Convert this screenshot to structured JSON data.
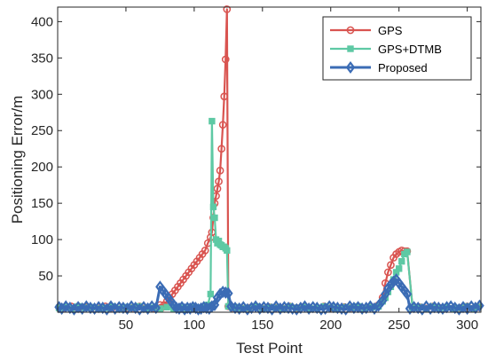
{
  "chart_data": {
    "type": "line",
    "xlabel": "Test Point",
    "ylabel": "Positioning Error/m",
    "xlim": [
      0,
      310
    ],
    "ylim": [
      0,
      420
    ],
    "xticks": [
      50,
      100,
      150,
      200,
      250,
      300
    ],
    "yticks": [
      50,
      100,
      150,
      200,
      250,
      300,
      350,
      400
    ],
    "grid": false,
    "legend": "top-right",
    "series": [
      {
        "name": "GPS",
        "color": "#d95450",
        "marker": "circle",
        "x": [
          1,
          5,
          10,
          15,
          20,
          25,
          30,
          35,
          40,
          45,
          50,
          55,
          60,
          65,
          70,
          75,
          76,
          78,
          80,
          82,
          84,
          86,
          88,
          90,
          92,
          94,
          96,
          98,
          100,
          102,
          104,
          106,
          108,
          110,
          112,
          113,
          114,
          115,
          116,
          117,
          118,
          119,
          120,
          121,
          122,
          123,
          124,
          125,
          128,
          130,
          135,
          140,
          145,
          150,
          155,
          160,
          165,
          170,
          175,
          180,
          185,
          190,
          195,
          200,
          205,
          210,
          215,
          220,
          225,
          230,
          235,
          238,
          240,
          242,
          244,
          246,
          248,
          250,
          252,
          254,
          256,
          260,
          265,
          270,
          275,
          280,
          285,
          290,
          295,
          300,
          305,
          308
        ],
        "y": [
          7,
          6,
          8,
          5,
          7,
          6,
          5,
          8,
          6,
          7,
          5,
          6,
          8,
          6,
          5,
          10,
          6,
          10,
          15,
          20,
          25,
          30,
          35,
          40,
          45,
          50,
          55,
          60,
          65,
          70,
          75,
          80,
          85,
          95,
          103,
          110,
          130,
          150,
          160,
          170,
          180,
          195,
          225,
          258,
          297,
          348,
          417,
          8,
          6,
          7,
          5,
          6,
          8,
          5,
          7,
          6,
          5,
          8,
          6,
          7,
          5,
          6,
          8,
          6,
          5,
          7,
          6,
          8,
          5,
          7,
          10,
          20,
          40,
          55,
          65,
          75,
          80,
          83,
          85,
          84,
          84,
          6,
          7,
          5,
          8,
          6,
          7,
          5,
          6,
          8,
          5,
          7
        ]
      },
      {
        "name": "GPS+DTMB",
        "color": "#5ec9a4",
        "marker": "square",
        "x": [
          1,
          5,
          10,
          15,
          20,
          25,
          30,
          35,
          40,
          45,
          50,
          55,
          60,
          65,
          70,
          75,
          80,
          85,
          90,
          95,
          100,
          105,
          108,
          110,
          112,
          113,
          114,
          115,
          116,
          117,
          118,
          119,
          120,
          121,
          122,
          123,
          124,
          125,
          128,
          130,
          135,
          140,
          145,
          150,
          155,
          160,
          165,
          170,
          175,
          180,
          185,
          190,
          195,
          200,
          205,
          210,
          215,
          220,
          225,
          230,
          235,
          238,
          240,
          242,
          244,
          246,
          248,
          250,
          252,
          254,
          256,
          260,
          265,
          270,
          275,
          280,
          285,
          290,
          295,
          300,
          305,
          308
        ],
        "y": [
          6,
          7,
          5,
          8,
          6,
          7,
          5,
          6,
          8,
          5,
          7,
          6,
          8,
          5,
          6,
          5,
          7,
          5,
          6,
          5,
          7,
          6,
          8,
          10,
          25,
          263,
          145,
          130,
          100,
          95,
          98,
          93,
          92,
          90,
          90,
          88,
          85,
          8,
          6,
          7,
          5,
          6,
          8,
          5,
          7,
          6,
          5,
          8,
          6,
          7,
          5,
          6,
          8,
          6,
          5,
          7,
          6,
          8,
          5,
          7,
          8,
          15,
          20,
          28,
          35,
          45,
          55,
          60,
          70,
          80,
          83,
          6,
          7,
          5,
          8,
          6,
          7,
          5,
          6,
          8,
          5,
          7
        ]
      },
      {
        "name": "Proposed",
        "color": "#3b6cb5",
        "marker": "diamond",
        "x": [
          1,
          3,
          6,
          9,
          12,
          15,
          18,
          21,
          24,
          27,
          30,
          33,
          36,
          39,
          42,
          45,
          48,
          51,
          54,
          57,
          60,
          63,
          66,
          69,
          72,
          75,
          77,
          79,
          81,
          83,
          85,
          87,
          89,
          91,
          93,
          95,
          97,
          99,
          101,
          103,
          105,
          107,
          109,
          111,
          113,
          115,
          117,
          119,
          121,
          123,
          125,
          127,
          130,
          133,
          136,
          139,
          142,
          145,
          148,
          151,
          154,
          157,
          160,
          163,
          166,
          169,
          172,
          175,
          178,
          181,
          184,
          187,
          190,
          193,
          196,
          199,
          202,
          205,
          208,
          211,
          214,
          217,
          220,
          223,
          226,
          229,
          232,
          235,
          238,
          240,
          242,
          244,
          246,
          248,
          250,
          252,
          254,
          256,
          258,
          261,
          264,
          267,
          270,
          273,
          276,
          279,
          282,
          285,
          288,
          291,
          294,
          297,
          300,
          303,
          306,
          309
        ],
        "y": [
          7,
          5,
          8,
          6,
          4,
          7,
          5,
          8,
          6,
          5,
          7,
          6,
          4,
          8,
          5,
          7,
          6,
          5,
          8,
          6,
          4,
          7,
          5,
          8,
          6,
          35,
          30,
          25,
          20,
          15,
          10,
          6,
          5,
          7,
          4,
          6,
          5,
          7,
          6,
          4,
          5,
          7,
          6,
          5,
          8,
          10,
          20,
          25,
          28,
          27,
          26,
          8,
          6,
          5,
          7,
          4,
          6,
          8,
          5,
          7,
          6,
          4,
          8,
          5,
          7,
          6,
          5,
          4,
          6,
          8,
          5,
          7,
          6,
          4,
          5,
          8,
          7,
          6,
          5,
          4,
          8,
          6,
          7,
          5,
          6,
          8,
          5,
          9,
          16,
          25,
          33,
          38,
          42,
          45,
          40,
          35,
          30,
          25,
          5,
          7,
          6,
          4,
          8,
          5,
          7,
          6,
          5,
          7,
          8,
          6,
          4,
          7,
          5,
          8,
          6,
          9
        ]
      }
    ]
  }
}
